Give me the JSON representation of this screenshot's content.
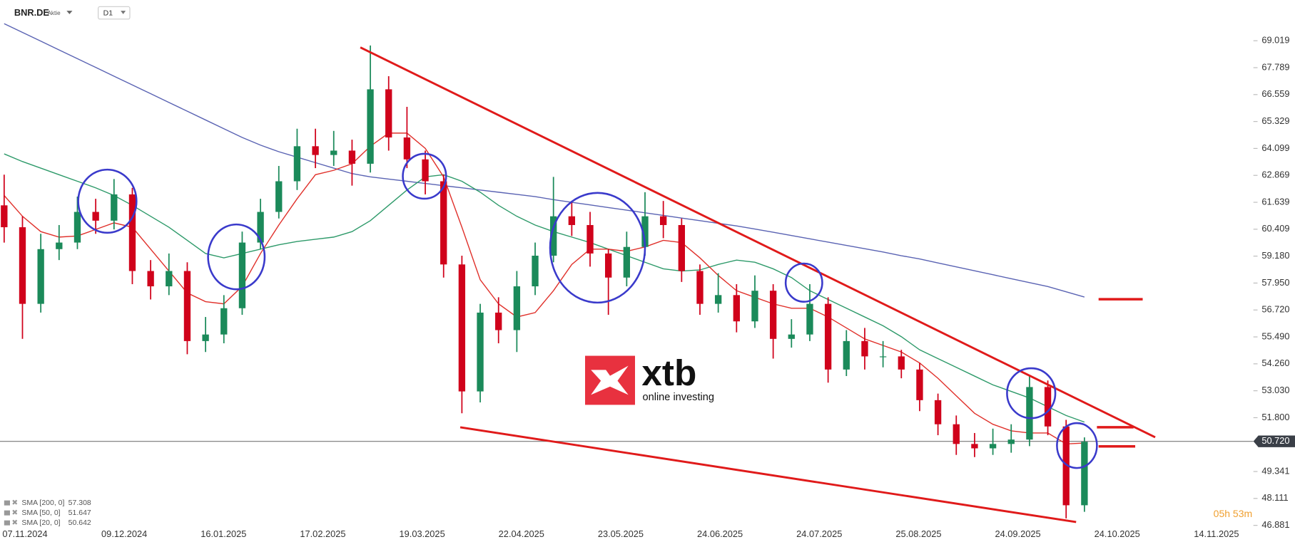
{
  "header": {
    "symbol": "BNR.DE",
    "asset_type": "Aktie",
    "timeframe": "D1"
  },
  "watermark": {
    "brand": "xtb",
    "tagline": "online investing"
  },
  "countdown": "05h 53m",
  "chart_data": {
    "type": "candlestick",
    "up_color": "#1b8a5a",
    "down_color": "#d0021b",
    "ylim": [
      46.577,
      70.88
    ],
    "yticks": [
      69.019,
      67.789,
      66.559,
      65.329,
      64.099,
      62.869,
      61.639,
      60.409,
      {
        "value": 59.18,
        "label": "59.180"
      },
      {
        "value": 57.95,
        "label": "57.950"
      },
      {
        "value": 56.72,
        "label": "56.720"
      },
      {
        "value": 55.49,
        "label": "55.490"
      },
      {
        "value": 54.26,
        "label": "54.260"
      },
      {
        "value": 53.03,
        "label": "53.030"
      },
      {
        "value": 51.8,
        "label": "51.800"
      },
      49.341,
      48.111,
      46.881
    ],
    "last_price": {
      "value": 50.72,
      "label": "50.720"
    },
    "x_labels": [
      "07.11.2024",
      "09.12.2024",
      "16.01.2025",
      "17.02.2025",
      "19.03.2025",
      "22.04.2025",
      "23.05.2025",
      "24.06.2025",
      "24.07.2025",
      "25.08.2025",
      "24.09.2025",
      "24.10.2025",
      "14.11.2025"
    ],
    "candles": [
      [
        61.5,
        62.9,
        59.8,
        60.5
      ],
      [
        60.5,
        61.0,
        55.4,
        57.0
      ],
      [
        57.0,
        60.2,
        56.6,
        59.5
      ],
      [
        59.5,
        60.6,
        59.0,
        59.8
      ],
      [
        59.8,
        61.9,
        59.5,
        61.2
      ],
      [
        61.2,
        61.8,
        60.2,
        60.8
      ],
      [
        60.8,
        62.7,
        60.4,
        62.0
      ],
      [
        62.0,
        62.3,
        57.9,
        58.5
      ],
      [
        58.5,
        59.0,
        57.2,
        57.8
      ],
      [
        57.8,
        59.3,
        57.4,
        58.5
      ],
      [
        58.5,
        58.9,
        54.7,
        55.3
      ],
      [
        55.3,
        56.4,
        54.8,
        55.6
      ],
      [
        55.6,
        57.4,
        55.2,
        56.8
      ],
      [
        56.8,
        60.3,
        56.5,
        59.8
      ],
      [
        59.8,
        61.8,
        59.5,
        61.2
      ],
      [
        61.2,
        63.3,
        60.9,
        62.6
      ],
      [
        62.6,
        65.0,
        62.2,
        64.2
      ],
      [
        64.2,
        65.0,
        63.2,
        63.8
      ],
      [
        63.8,
        64.9,
        63.3,
        64.0
      ],
      [
        64.0,
        64.5,
        62.4,
        63.4
      ],
      [
        63.4,
        68.8,
        63.0,
        66.8
      ],
      [
        66.8,
        67.4,
        64.0,
        64.6
      ],
      [
        64.6,
        66.0,
        63.2,
        63.6
      ],
      [
        63.6,
        64.0,
        62.0,
        62.6
      ],
      [
        62.6,
        62.9,
        58.2,
        58.8
      ],
      [
        58.8,
        59.2,
        52.0,
        53.0
      ],
      [
        53.0,
        57.0,
        52.5,
        56.6
      ],
      [
        56.6,
        57.3,
        55.2,
        55.8
      ],
      [
        55.8,
        58.5,
        54.8,
        57.8
      ],
      [
        57.8,
        59.8,
        57.4,
        59.2
      ],
      [
        59.2,
        62.8,
        58.9,
        61.0
      ],
      [
        61.0,
        61.7,
        60.1,
        60.6
      ],
      [
        60.6,
        61.2,
        58.7,
        59.3
      ],
      [
        59.3,
        59.5,
        56.5,
        58.2
      ],
      [
        58.2,
        60.3,
        57.8,
        59.6
      ],
      [
        59.6,
        62.1,
        59.2,
        61.0
      ],
      [
        61.0,
        61.7,
        60.0,
        60.6
      ],
      [
        60.6,
        60.9,
        58.0,
        58.5
      ],
      [
        58.5,
        58.8,
        56.5,
        57.0
      ],
      [
        57.0,
        58.4,
        56.6,
        57.4
      ],
      [
        57.4,
        57.9,
        55.7,
        56.2
      ],
      [
        56.2,
        58.3,
        55.9,
        57.6
      ],
      [
        57.6,
        57.9,
        54.5,
        55.4
      ],
      [
        55.4,
        56.3,
        55.0,
        55.6
      ],
      [
        55.6,
        57.9,
        55.3,
        57.0
      ],
      [
        57.0,
        57.3,
        53.4,
        54.0
      ],
      [
        54.0,
        55.8,
        53.7,
        55.3
      ],
      [
        55.3,
        55.9,
        54.0,
        54.6
      ],
      [
        54.6,
        55.3,
        54.1,
        54.6
      ],
      [
        54.6,
        54.9,
        53.6,
        54.0
      ],
      [
        54.0,
        54.3,
        52.1,
        52.6
      ],
      [
        52.6,
        52.9,
        51.0,
        51.5
      ],
      [
        51.5,
        51.9,
        50.1,
        50.6
      ],
      [
        50.6,
        51.1,
        50.0,
        50.4
      ],
      [
        50.4,
        51.3,
        50.1,
        50.6
      ],
      [
        50.6,
        51.5,
        50.2,
        50.8
      ],
      [
        50.8,
        53.7,
        50.5,
        53.2
      ],
      [
        53.2,
        53.5,
        51.0,
        51.4
      ],
      [
        51.4,
        51.7,
        47.2,
        47.8
      ],
      [
        47.8,
        50.9,
        47.5,
        50.7
      ]
    ],
    "series": [
      {
        "name": "SMA [200, 0]",
        "legend_value": 57.308,
        "color": "#5a63b3",
        "values": [
          69.8,
          69.4,
          69.0,
          68.6,
          68.2,
          67.8,
          67.4,
          67.0,
          66.6,
          66.2,
          65.8,
          65.4,
          65.0,
          64.6,
          64.25,
          63.95,
          63.7,
          63.45,
          63.2,
          62.95,
          62.8,
          62.7,
          62.6,
          62.5,
          62.4,
          62.3,
          62.2,
          62.1,
          62.0,
          61.9,
          61.76,
          61.64,
          61.52,
          61.4,
          61.28,
          61.16,
          61.04,
          60.92,
          60.8,
          60.68,
          60.56,
          60.42,
          60.27,
          60.12,
          59.97,
          59.82,
          59.67,
          59.52,
          59.37,
          59.2,
          59.05,
          58.87,
          58.69,
          58.51,
          58.33,
          58.15,
          57.97,
          57.79,
          57.55,
          57.31
        ]
      },
      {
        "name": "SMA [50, 0]",
        "legend_value": 51.647,
        "color": "#2e9a6a",
        "values": [
          63.85,
          63.5,
          63.2,
          62.9,
          62.6,
          62.3,
          61.95,
          61.5,
          61.0,
          60.5,
          59.9,
          59.3,
          59.1,
          59.3,
          59.5,
          59.7,
          59.85,
          59.95,
          60.05,
          60.3,
          60.8,
          61.5,
          62.2,
          62.8,
          62.9,
          62.6,
          62.1,
          61.5,
          61.0,
          60.6,
          60.3,
          60.05,
          59.8,
          59.5,
          59.2,
          58.9,
          58.6,
          58.5,
          58.55,
          58.8,
          59.0,
          58.9,
          58.6,
          58.2,
          57.6,
          57.2,
          56.8,
          56.4,
          56.0,
          55.5,
          54.9,
          54.5,
          54.1,
          53.7,
          53.3,
          53.0,
          52.7,
          52.3,
          51.9,
          51.6
        ]
      },
      {
        "name": "SMA [20, 0]",
        "legend_value": 50.642,
        "color": "#e0302a",
        "values": [
          61.95,
          61.0,
          60.3,
          60.05,
          60.1,
          60.4,
          60.7,
          60.5,
          59.5,
          58.5,
          57.5,
          57.1,
          57.0,
          57.8,
          59.3,
          60.6,
          61.8,
          62.9,
          63.1,
          63.4,
          64.2,
          64.8,
          64.8,
          64.1,
          62.8,
          60.5,
          58.1,
          57.0,
          56.4,
          56.6,
          57.6,
          58.8,
          59.5,
          59.5,
          59.4,
          59.6,
          59.9,
          59.8,
          59.1,
          58.3,
          57.6,
          57.3,
          57.0,
          56.8,
          56.8,
          56.4,
          55.9,
          55.4,
          55.1,
          54.8,
          54.3,
          53.6,
          52.8,
          52.0,
          51.5,
          51.2,
          51.1,
          51.1,
          50.6,
          50.64
        ]
      }
    ]
  }
}
